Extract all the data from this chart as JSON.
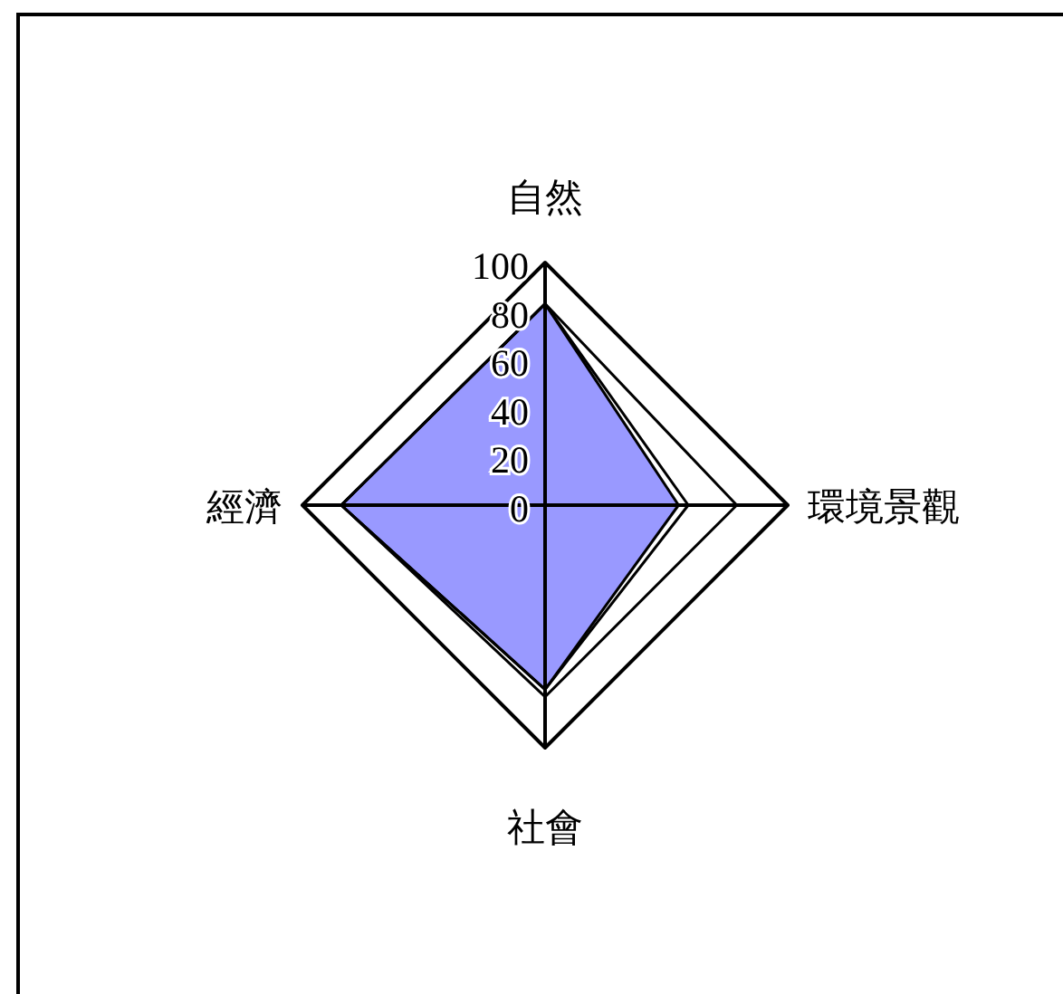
{
  "chart_data": {
    "type": "radar",
    "categories": [
      "自然",
      "環境景觀",
      "社會",
      "經濟"
    ],
    "series": [
      {
        "color": "#9999ff",
        "values": [
          83,
          55,
          76,
          84
        ]
      },
      {
        "color": "#000000",
        "values": [
          83,
          79,
          79,
          84
        ]
      },
      {
        "color": "#000000",
        "values": [
          83,
          59,
          76,
          84
        ]
      }
    ],
    "ylim": [
      0,
      100
    ],
    "yticks": [
      0,
      20,
      40,
      60,
      80,
      100
    ],
    "grid": true
  }
}
